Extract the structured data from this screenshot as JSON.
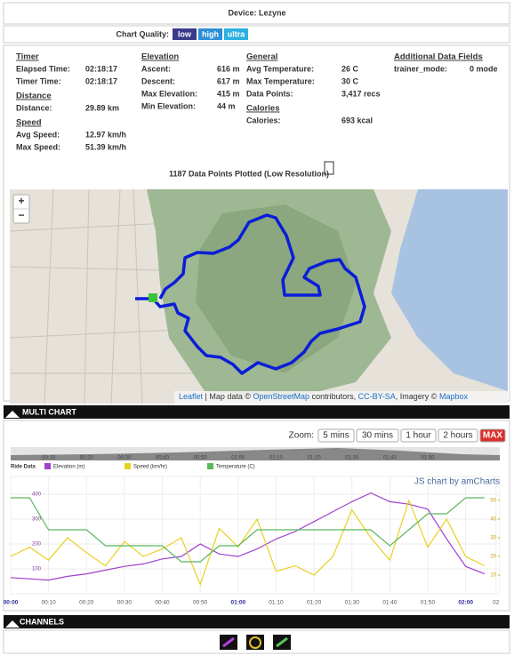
{
  "header": {
    "device": "Device: Lezyne"
  },
  "quality": {
    "label": "Chart Quality:",
    "options": [
      "low",
      "high",
      "ultra"
    ]
  },
  "stats": [
    {
      "title": "Timer",
      "rows": [
        {
          "label": "Elapsed Time:",
          "value": "02:18:17"
        },
        {
          "label": "Timer Time:",
          "value": "02:18:17"
        }
      ]
    },
    {
      "title": "Distance",
      "rows": [
        {
          "label": "Distance:",
          "value": "29.89 km"
        }
      ]
    },
    {
      "title": "Speed",
      "rows": [
        {
          "label": "Avg Speed:",
          "value": "12.97 km/h"
        },
        {
          "label": "Max Speed:",
          "value": "51.39 km/h"
        }
      ]
    },
    {
      "title": "Elevation",
      "rows": [
        {
          "label": "Ascent:",
          "value": "616 m"
        },
        {
          "label": "Descent:",
          "value": "617 m"
        },
        {
          "label": "Max Elevation:",
          "value": "415 m"
        },
        {
          "label": "Min Elevation:",
          "value": "44 m"
        }
      ]
    },
    {
      "title": "General",
      "rows": [
        {
          "label": "Avg Temperature:",
          "value": "26 C"
        },
        {
          "label": "Max Temperature:",
          "value": "30 C"
        },
        {
          "label": "Data Points:",
          "value": "3,417 recs"
        }
      ]
    },
    {
      "title": "Calories",
      "rows": [
        {
          "label": "Calories:",
          "value": "693 kcal"
        }
      ]
    },
    {
      "title": "Additional Data Fields",
      "rows": [
        {
          "label": "trainer_mode:",
          "value": "0 mode"
        }
      ]
    }
  ],
  "points_note": "1187 Data Points Plotted (Low Resolution)",
  "map": {
    "zoom_in": "+",
    "zoom_out": "−",
    "attribution": [
      "Leaflet",
      " | Map data © ",
      "OpenStreetMap",
      " contributors, ",
      "CC-BY-SA",
      ", Imagery © ",
      "Mapbox"
    ]
  },
  "sections": {
    "multi_chart": "MULTI CHART",
    "channels": "CHANNELS"
  },
  "zoom": {
    "label": "Zoom:",
    "options": [
      "5 mins",
      "30 mins",
      "1 hour",
      "2 hours",
      "MAX"
    ]
  },
  "chart_data": {
    "type": "line",
    "legend_title": "Ride Data",
    "watermark": "JS chart by amCharts",
    "x": [
      0,
      5,
      10,
      15,
      20,
      25,
      30,
      35,
      40,
      45,
      50,
      55,
      60,
      65,
      70,
      75,
      80,
      85,
      90,
      95,
      100,
      105,
      110,
      115,
      120,
      125
    ],
    "xlim": [
      0,
      129
    ],
    "xticks": [
      {
        "value": 0,
        "label": "00:00"
      },
      {
        "value": 10,
        "label": "00:10"
      },
      {
        "value": 20,
        "label": "00:20"
      },
      {
        "value": 30,
        "label": "00:30"
      },
      {
        "value": 40,
        "label": "00:40"
      },
      {
        "value": 50,
        "label": "00:50"
      },
      {
        "value": 60,
        "label": "01:00"
      },
      {
        "value": 70,
        "label": "01:10"
      },
      {
        "value": 80,
        "label": "01:20"
      },
      {
        "value": 90,
        "label": "01:30"
      },
      {
        "value": 100,
        "label": "01:40"
      },
      {
        "value": 110,
        "label": "01:50"
      },
      {
        "value": 120,
        "label": "02:00"
      },
      {
        "value": 128,
        "label": "02"
      }
    ],
    "ylim": [
      0,
      450
    ],
    "yticks": [
      100,
      200,
      300,
      400
    ],
    "y2lim": [
      0,
      60
    ],
    "y2ticks": [
      10,
      20,
      30,
      40,
      50
    ],
    "y3lim": [
      24,
      31
    ],
    "grid": true,
    "series": [
      {
        "name": "Elevation (m)",
        "color": "#a040d0",
        "values": [
          65,
          60,
          55,
          70,
          80,
          95,
          110,
          120,
          140,
          150,
          200,
          160,
          150,
          180,
          220,
          250,
          290,
          330,
          370,
          405,
          370,
          360,
          340,
          220,
          110,
          80
        ]
      },
      {
        "name": "Speed (km/hr)",
        "color": "#e8d020",
        "axis": "y2",
        "values": [
          20,
          25,
          18,
          30,
          22,
          15,
          28,
          20,
          24,
          30,
          5,
          35,
          25,
          40,
          12,
          15,
          10,
          20,
          45,
          30,
          18,
          50,
          25,
          40,
          20,
          15
        ]
      },
      {
        "name": "Temperature (C)",
        "color": "#5cb85c",
        "axis": "y3",
        "values": [
          30,
          30,
          28,
          28,
          28,
          27,
          27,
          27,
          27,
          26,
          26,
          27,
          27,
          28,
          28,
          28,
          28,
          28,
          28,
          28,
          27,
          28,
          29,
          29,
          30,
          30
        ]
      }
    ]
  }
}
